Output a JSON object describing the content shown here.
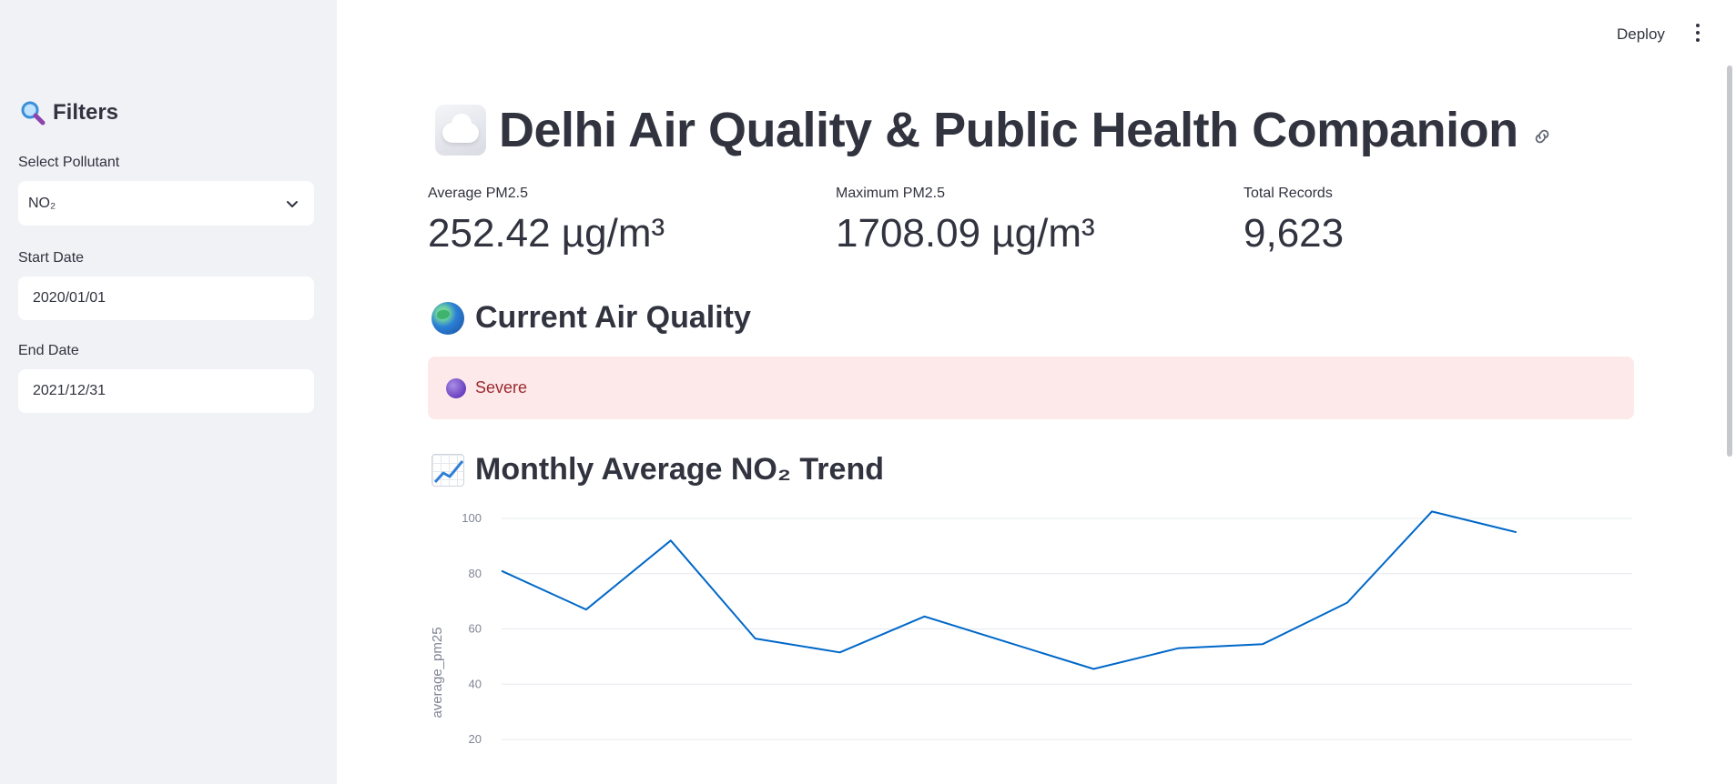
{
  "sidebar": {
    "title": "Filters",
    "pollutant_label": "Select Pollutant",
    "pollutant_value": "NO₂",
    "start_label": "Start Date",
    "start_value": "2020/01/01",
    "end_label": "End Date",
    "end_value": "2021/12/31"
  },
  "header": {
    "deploy_label": "Deploy"
  },
  "main": {
    "title": "Delhi Air Quality & Public Health Companion",
    "metrics": [
      {
        "label": "Average PM2.5",
        "value": "252.42 µg/m³"
      },
      {
        "label": "Maximum PM2.5",
        "value": "1708.09 µg/m³"
      },
      {
        "label": "Total Records",
        "value": "9,623"
      }
    ],
    "current_heading": "Current Air Quality",
    "status_text": "Severe",
    "trend_heading": "Monthly Average NO₂ Trend"
  },
  "colors": {
    "sidebar_bg": "#f0f2f6",
    "alert_bg": "#fde9ea",
    "alert_text": "#9c2a2f",
    "line": "#0068c9"
  },
  "chart_data": {
    "type": "line",
    "title": "",
    "xlabel": "",
    "ylabel": "average_pm25",
    "yticks": [
      20,
      40,
      60,
      80,
      100
    ],
    "ylim": [
      20,
      100
    ],
    "grid": true,
    "series": [
      {
        "values": [
          81,
          67,
          92,
          56.5,
          51.5,
          64.5,
          55,
          45.5,
          53,
          54.5,
          69.5,
          102.5,
          95
        ]
      }
    ]
  }
}
